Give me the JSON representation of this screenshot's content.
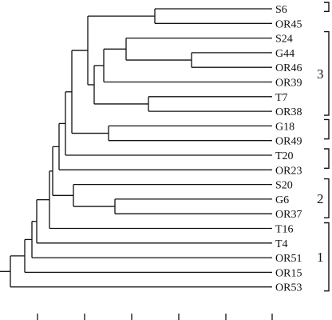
{
  "leaves": [
    "S6",
    "OR45",
    "S24",
    "G44",
    "OR46",
    "OR39",
    "T7",
    "OR38",
    "G18",
    "OR49",
    "T20",
    "OR23",
    "S20",
    "G6",
    "OR37",
    "T16",
    "T4",
    "OR51",
    "OR15",
    "OR53"
  ],
  "clusters": [
    {
      "label": "3",
      "first_leaf": "S24",
      "last_leaf": "OR38"
    },
    {
      "label": "2",
      "first_leaf": "S20",
      "last_leaf": "OR37"
    },
    {
      "label": "1",
      "first_leaf": "T16",
      "last_leaf": "OR53"
    }
  ],
  "colors": {
    "line": "#111111",
    "text": "#111111",
    "background": "#ffffff"
  }
}
